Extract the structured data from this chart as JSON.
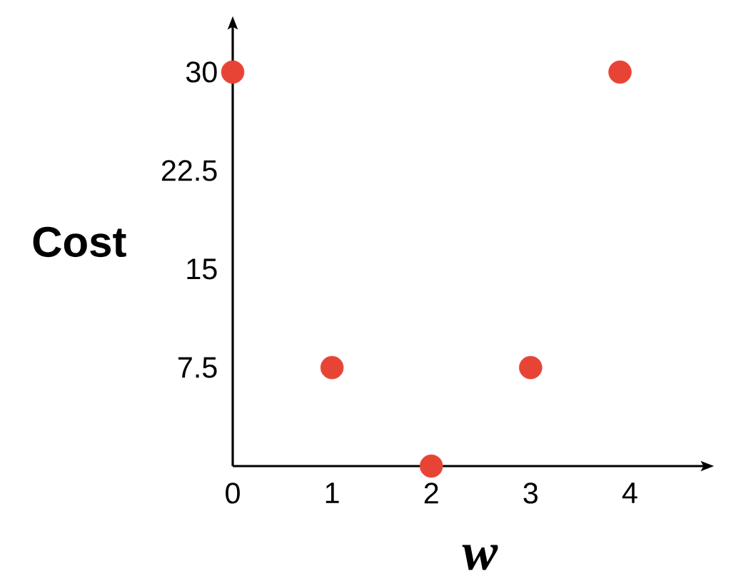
{
  "chart_data": {
    "type": "scatter",
    "xlabel": "w",
    "ylabel": "Cost",
    "x": [
      0,
      1,
      2,
      3,
      3.9
    ],
    "values": [
      30,
      7.5,
      0,
      7.5,
      30
    ],
    "color": "#e84436",
    "marker": "circle",
    "xlim": [
      0,
      4.76
    ],
    "ylim": [
      0,
      33.6
    ],
    "xticks": [
      0,
      1,
      2,
      3,
      4
    ],
    "yticks": [
      7.5,
      15,
      22.5,
      30
    ]
  }
}
